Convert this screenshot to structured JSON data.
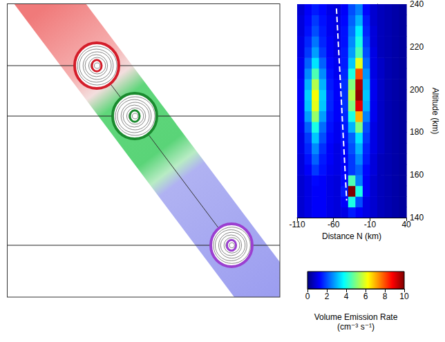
{
  "chart_data": {
    "type": "heatmap",
    "xlabel": "Distance N (km)",
    "ylabel": "Altitude (km)",
    "xlim": [
      -110,
      40
    ],
    "xticks": [
      -110,
      -60,
      -10,
      40
    ],
    "ylim": [
      140,
      240
    ],
    "yticks": [
      140,
      160,
      180,
      200,
      220,
      240
    ],
    "cell_x": [
      -105,
      -95,
      -85,
      -75,
      -65,
      -55,
      -45,
      -35,
      -25,
      -15,
      -5,
      5,
      15,
      25,
      35
    ],
    "cell_y": [
      142.5,
      147.5,
      152.5,
      157.5,
      162.5,
      167.5,
      172.5,
      177.5,
      182.5,
      187.5,
      192.5,
      197.5,
      202.5,
      207.5,
      212.5,
      217.5,
      222.5,
      227.5,
      232.5,
      237.5
    ],
    "cells": [
      [
        0.8,
        1,
        1.2,
        1.2,
        1,
        0.9,
        1,
        1.5,
        1.2,
        1,
        0.8,
        0.6,
        0.5,
        0.4,
        0.3
      ],
      [
        0.8,
        1,
        1.2,
        1.2,
        1,
        0.9,
        1.2,
        4,
        2,
        1,
        0.8,
        0.6,
        0.5,
        0.4,
        0.3
      ],
      [
        0.8,
        1,
        1.2,
        1.2,
        1,
        0.9,
        1.5,
        10,
        4,
        1.2,
        0.8,
        0.6,
        0.5,
        0.4,
        0.3
      ],
      [
        0.8,
        1,
        1.3,
        1.2,
        1,
        0.9,
        1.3,
        4.5,
        2.5,
        1.2,
        0.8,
        0.6,
        0.5,
        0.4,
        0.3
      ],
      [
        0.9,
        1.2,
        1.8,
        1.4,
        1.1,
        1,
        1.2,
        1.8,
        2.2,
        1.3,
        0.9,
        0.6,
        0.5,
        0.4,
        0.3
      ],
      [
        0.9,
        1.4,
        2.2,
        1.5,
        1.2,
        1,
        1.2,
        1.8,
        2.6,
        1.5,
        0.9,
        0.6,
        0.5,
        0.4,
        0.3
      ],
      [
        1,
        1.6,
        2.6,
        1.7,
        1.2,
        1,
        1.3,
        2,
        3,
        1.6,
        1,
        0.7,
        0.5,
        0.4,
        0.3
      ],
      [
        1,
        1.8,
        3.2,
        2,
        1.3,
        1.1,
        1.4,
        2.2,
        3.5,
        1.8,
        1,
        0.7,
        0.5,
        0.4,
        0.3
      ],
      [
        1.1,
        2.2,
        4,
        2.3,
        1.4,
        1.1,
        1.5,
        3,
        5,
        2,
        1,
        0.7,
        0.5,
        0.4,
        0.3
      ],
      [
        1.2,
        2.8,
        5.2,
        2.8,
        1.5,
        1.2,
        1.6,
        4,
        7,
        2.5,
        1.1,
        0.7,
        0.5,
        0.4,
        0.3
      ],
      [
        1.2,
        3.2,
        6,
        3.2,
        1.6,
        1.2,
        1.7,
        5,
        9,
        3,
        1.1,
        0.7,
        0.5,
        0.4,
        0.3
      ],
      [
        1.2,
        3.3,
        6.2,
        3.3,
        1.6,
        1.2,
        1.7,
        5.5,
        9.8,
        3.2,
        1.1,
        0.7,
        0.5,
        0.4,
        0.3
      ],
      [
        1.2,
        3,
        5.5,
        3,
        1.5,
        1.2,
        1.7,
        5,
        9.5,
        3,
        1.1,
        0.7,
        0.5,
        0.4,
        0.3
      ],
      [
        1.1,
        2.6,
        4.5,
        2.6,
        1.4,
        1.1,
        1.6,
        4,
        8,
        2.7,
        1,
        0.7,
        0.5,
        0.4,
        0.3
      ],
      [
        1.1,
        2.2,
        3.5,
        2.2,
        1.3,
        1.1,
        1.5,
        3.2,
        6,
        2.3,
        1,
        0.7,
        0.5,
        0.4,
        0.3
      ],
      [
        1,
        1.8,
        2.8,
        1.8,
        1.2,
        1,
        1.5,
        2.8,
        4.5,
        2,
        1,
        0.6,
        0.5,
        0.4,
        0.3
      ],
      [
        1,
        1.6,
        2.4,
        1.6,
        1.2,
        1,
        1.4,
        2.6,
        4,
        1.8,
        0.9,
        0.6,
        0.5,
        0.4,
        0.3
      ],
      [
        0.9,
        1.4,
        2,
        1.5,
        1.1,
        1,
        1.4,
        2.4,
        3.6,
        1.6,
        0.9,
        0.6,
        0.5,
        0.4,
        0.3
      ],
      [
        0.9,
        1.3,
        1.8,
        1.4,
        1.1,
        1,
        1.3,
        2.2,
        3,
        1.5,
        0.8,
        0.6,
        0.5,
        0.4,
        0.3
      ],
      [
        0.8,
        1.2,
        1.5,
        1.3,
        1,
        0.9,
        1.2,
        2,
        2.5,
        1.3,
        0.8,
        0.6,
        0.5,
        0.4,
        0.3
      ]
    ],
    "dashed_line": {
      "x": [
        -56,
        -42
      ],
      "y": [
        238,
        148
      ],
      "color": "#ffffff",
      "line_style": "dashed"
    },
    "color_bar": {
      "label": "Volume Emission Rate (cm⁻³ s⁻¹)",
      "range": [
        0,
        10
      ],
      "ticks": [
        0,
        2,
        4,
        6,
        8,
        10
      ]
    }
  }
}
